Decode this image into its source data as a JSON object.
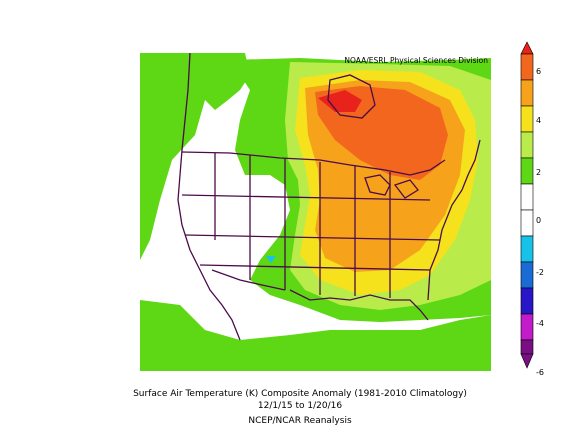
{
  "credit": "NOAA/ESRL Physical Sciences Division",
  "caption": {
    "line1": "Surface Air Temperature (K) Composite Anomaly (1981-2010 Climatology)",
    "line2": "12/1/15  to 1/20/16",
    "line3": "NCEP/NCAR Reanalysis"
  },
  "colorbar": {
    "ticks": [
      "6",
      "4",
      "2",
      "0",
      "-2",
      "-4",
      "-6"
    ],
    "colors": {
      "red": "#e8231b",
      "orange_red": "#f2661e",
      "orange": "#f7a21b",
      "yellow": "#f5e21c",
      "light_green": "#b9ec4a",
      "green": "#5ed714",
      "white": "#ffffff",
      "cyan": "#16c2ea",
      "blue": "#1b6bd6",
      "dark_blue": "#2a16c9",
      "magenta": "#c21bc9",
      "purple": "#7a0f83"
    }
  }
}
